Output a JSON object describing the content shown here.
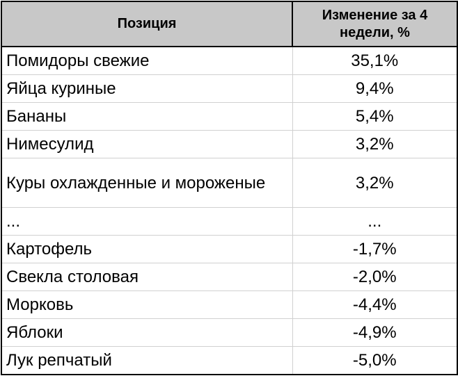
{
  "table": {
    "headers": [
      "Позиция",
      "Изменение за 4 недели, %"
    ],
    "rows": [
      {
        "name": "Помидоры свежие",
        "change": "35,1%"
      },
      {
        "name": "Яйца куриные",
        "change": "9,4%"
      },
      {
        "name": "Бананы",
        "change": "5,4%"
      },
      {
        "name": "Нимесулид",
        "change": "3,2%"
      },
      {
        "name": "Куры охлажденные и мороженые",
        "change": "3,2%"
      },
      {
        "name": "...",
        "change": "..."
      },
      {
        "name": "Картофель",
        "change": "-1,7%"
      },
      {
        "name": "Свекла столовая",
        "change": "-2,0%"
      },
      {
        "name": "Морковь",
        "change": "-4,4%"
      },
      {
        "name": "Яблоки",
        "change": "-4,9%"
      },
      {
        "name": "Лук репчатый",
        "change": "-5,0%"
      }
    ]
  },
  "colors": {
    "header_background": "#c8c8c8",
    "outer_border": "#000000",
    "inner_border": "#d0d0d0"
  }
}
